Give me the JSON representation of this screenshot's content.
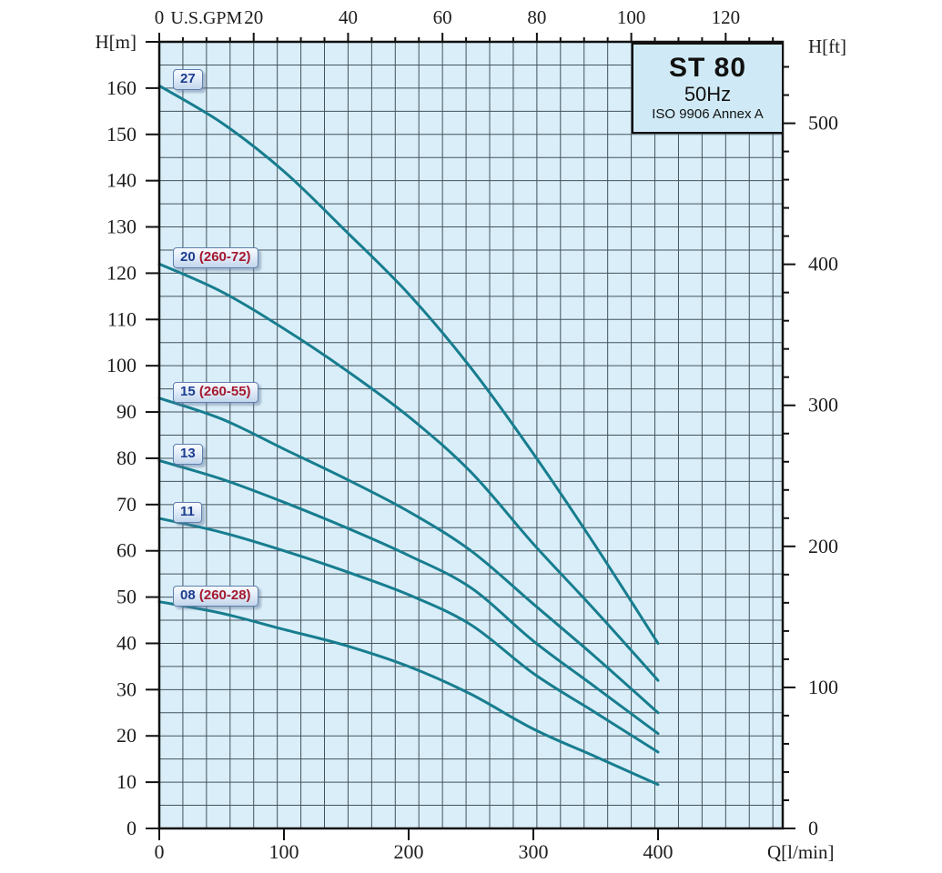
{
  "title_box": {
    "model": "ST 80",
    "frequency": "50Hz",
    "standard": "ISO 9906 Annex A"
  },
  "colors": {
    "curve": "#177d8f",
    "plot_background": "#d9eef8",
    "grid_line": "#45535d",
    "frame": "#111111",
    "axis_text": "#1d1d1d",
    "label_model_text": "#1c3d8f",
    "label_range_text": "#a5182e"
  },
  "chart_data": {
    "type": "line",
    "title": "ST 80",
    "subtitle": "50Hz",
    "note": "ISO 9906 Annex A",
    "legend_position": "on-curve-labels",
    "grid": true,
    "axes": {
      "bottom": {
        "label": "Q[l/min]",
        "unit": "l/min",
        "range": [
          0,
          500
        ],
        "tick_labels": [
          0,
          100,
          200,
          300,
          400
        ]
      },
      "top": {
        "label": "U.S.GPM",
        "unit": "US gpm",
        "range": [
          0,
          132
        ],
        "tick_labels": [
          0,
          20,
          40,
          60,
          80,
          100,
          120
        ],
        "minor_tick_step": 5
      },
      "left": {
        "label": "H[m]",
        "unit": "m",
        "range": [
          0,
          170
        ],
        "tick_labels": [
          0,
          10,
          20,
          30,
          40,
          50,
          60,
          70,
          80,
          90,
          100,
          110,
          120,
          130,
          140,
          150,
          160
        ],
        "grid_step": 5
      },
      "right": {
        "label": "H[ft]",
        "unit": "ft",
        "range": [
          0,
          558
        ],
        "tick_labels": [
          0,
          100,
          200,
          300,
          400,
          500
        ],
        "minor_tick_step": 20
      }
    },
    "series": [
      {
        "name": "27",
        "suffix": "",
        "x": [
          0,
          50,
          100,
          150,
          200,
          250,
          300,
          350,
          400
        ],
        "y": [
          160.5,
          152.5,
          142,
          129,
          115.5,
          99.5,
          81,
          61,
          40
        ]
      },
      {
        "name": "20",
        "suffix": "(260-72)",
        "x": [
          0,
          50,
          100,
          150,
          200,
          250,
          300,
          350,
          400
        ],
        "y": [
          122,
          116,
          108,
          99,
          89,
          77,
          61.5,
          47,
          32
        ]
      },
      {
        "name": "15",
        "suffix": "(260-55)",
        "x": [
          0,
          50,
          100,
          150,
          200,
          250,
          300,
          350,
          400
        ],
        "y": [
          93,
          88.5,
          82,
          75.5,
          68.5,
          60,
          48.5,
          37,
          25
        ]
      },
      {
        "name": "13",
        "suffix": "",
        "x": [
          0,
          50,
          100,
          150,
          200,
          250,
          300,
          350,
          400
        ],
        "y": [
          79.5,
          75.5,
          70.5,
          65,
          59,
          52,
          40.5,
          30.5,
          20.5
        ]
      },
      {
        "name": "11",
        "suffix": "",
        "x": [
          0,
          50,
          100,
          150,
          200,
          250,
          300,
          350,
          400
        ],
        "y": [
          67,
          64,
          60,
          55.5,
          50.5,
          44,
          33.5,
          25,
          16.5
        ]
      },
      {
        "name": "08",
        "suffix": "(260-28)",
        "x": [
          0,
          50,
          100,
          150,
          200,
          250,
          300,
          350,
          400
        ],
        "y": [
          49,
          46.5,
          43,
          39.5,
          35,
          29,
          21.5,
          15.5,
          9.5
        ]
      }
    ],
    "conversions": {
      "gpm_to_lmin": 3.78541,
      "ft_to_m": 0.3048
    }
  }
}
